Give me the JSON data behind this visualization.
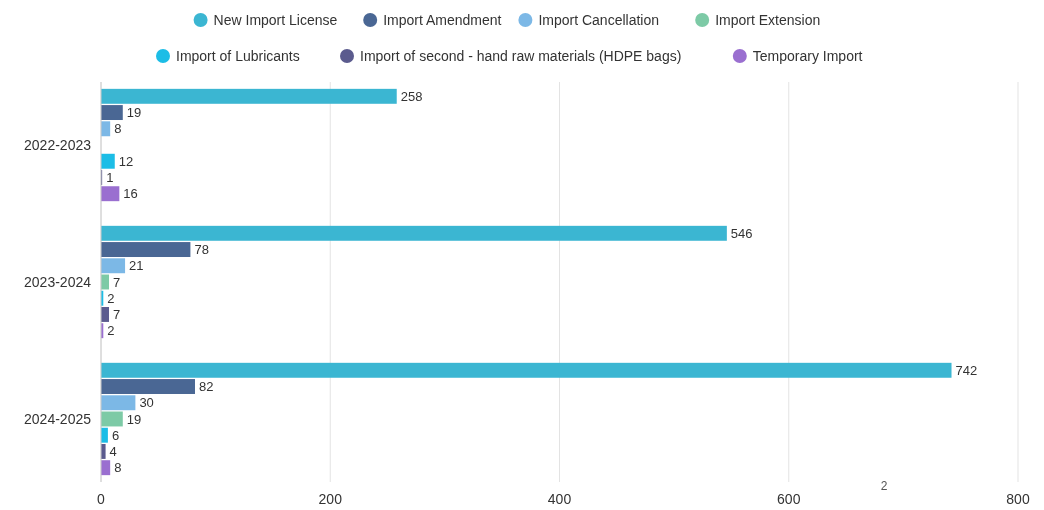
{
  "chart_data": {
    "type": "bar",
    "orientation": "horizontal",
    "categories": [
      "2022-2023",
      "2023-2024",
      "2024-2025"
    ],
    "series": [
      {
        "name": "New Import License",
        "color": "#3bb6d2",
        "values": [
          258,
          546,
          742
        ]
      },
      {
        "name": "Import Amendment",
        "color": "#4a6794",
        "values": [
          19,
          78,
          82
        ]
      },
      {
        "name": "Import Cancellation",
        "color": "#7cb8e6",
        "values": [
          8,
          21,
          30
        ]
      },
      {
        "name": "Import Extension",
        "color": "#7dcaa6",
        "values": [
          null,
          7,
          19
        ]
      },
      {
        "name": "Import of Lubricants",
        "color": "#1cbde6",
        "values": [
          12,
          2,
          6
        ]
      },
      {
        "name": "Import of second - hand raw materials (HDPE bags)",
        "color": "#5b5b8e",
        "values": [
          1,
          7,
          4
        ]
      },
      {
        "name": "Temporary Import",
        "color": "#9a6fd0",
        "values": [
          16,
          2,
          8
        ]
      }
    ],
    "xlim": [
      0,
      800
    ],
    "xticks": [
      0,
      200,
      400,
      600,
      800
    ],
    "grid": "x",
    "legend": "top",
    "data_labels": true,
    "annotations": [
      "2"
    ]
  }
}
